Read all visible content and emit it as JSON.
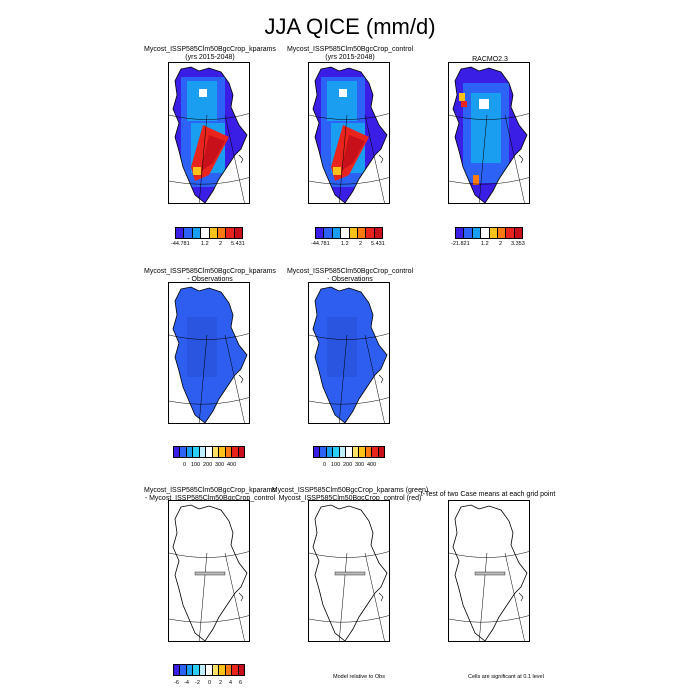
{
  "title": "JJA QICE (mm/d)",
  "panels": {
    "p11": {
      "line1": "Mycost_ISSP585Clm50BgcCrop_kparams",
      "line2": "(yrs 2015-2048)"
    },
    "p12": {
      "line1": "Mycost_ISSP585Clm50BgcCrop_control",
      "line2": "(yrs 2015-2048)"
    },
    "p13": {
      "line1": "RACMO2.3",
      "line2": ""
    },
    "p21": {
      "line1": "Mycost_ISSP585Clm50BgcCrop_kparams",
      "line2": "- Observations"
    },
    "p22": {
      "line1": "Mycost_ISSP585Clm50BgcCrop_control",
      "line2": "- Observations"
    },
    "p31": {
      "line1": "Mycost_ISSP585Clm50BgcCrop_kparams",
      "line2": "- Mycost_ISSP585Clm50BgcCrop_control"
    },
    "p32": {
      "line1": "Mycost_ISSP585Clm50BgcCrop_kparams (green)",
      "line2": "Mycost_ISSP585Clm50BgcCrop_control (red)"
    },
    "p33": {
      "line1": "t-Test of two Case means at each grid point",
      "line2": ""
    }
  },
  "colorbars": {
    "model": {
      "labels": [
        "-44.781",
        "1.2",
        "2",
        "5.431"
      ]
    },
    "racmo": {
      "labels": [
        "-21.821",
        "1.2",
        "2",
        "3.353"
      ]
    },
    "diff": {
      "labels": [
        "0",
        "100",
        "200",
        "300",
        "400"
      ]
    },
    "casediff": {
      "labels": [
        "-6",
        "-4",
        "-2",
        "0",
        "2",
        "4",
        "6"
      ]
    }
  },
  "notes": {
    "model_rel": "Model relative to Obs",
    "sig": "Cells are significant at 0.1 level"
  },
  "colors": {
    "seq": [
      "#3a1ee6",
      "#2c62f5",
      "#1a9ef0",
      "#2ad0f5",
      "#ffffff",
      "#ffc21a",
      "#ff7a10",
      "#e8241c",
      "#c8101a"
    ],
    "blue_field": "#2e5ef0"
  }
}
